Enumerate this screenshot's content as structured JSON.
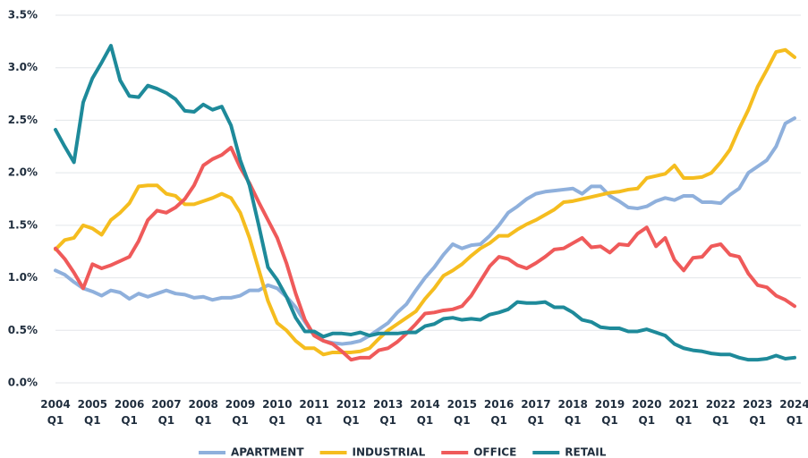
{
  "chart_data": {
    "type": "line",
    "categories": [
      "2004 Q1",
      null,
      null,
      null,
      "2005 Q1",
      null,
      null,
      null,
      "2006 Q1",
      null,
      null,
      null,
      "2007 Q1",
      null,
      null,
      null,
      "2008 Q1",
      null,
      null,
      null,
      "2009 Q1",
      null,
      null,
      null,
      "2010 Q1",
      null,
      null,
      null,
      "2011 Q1",
      null,
      null,
      null,
      "2012 Q1",
      null,
      null,
      null,
      "2013 Q1",
      null,
      null,
      null,
      "2014 Q1",
      null,
      null,
      null,
      "2015 Q1",
      null,
      null,
      null,
      "2016 Q1",
      null,
      null,
      null,
      "2017 Q1",
      null,
      null,
      null,
      "2018 Q1",
      null,
      null,
      null,
      "2019 Q1",
      null,
      null,
      null,
      "2020 Q1",
      null,
      null,
      null,
      "2021 Q1",
      null,
      null,
      null,
      "2022 Q1",
      null,
      null,
      null,
      "2023 Q1",
      null,
      null,
      null,
      "2024 Q1"
    ],
    "series": [
      {
        "name": "APARTMENT",
        "color": "#8fb0dc",
        "values": [
          1.07,
          1.03,
          0.96,
          0.9,
          0.87,
          0.83,
          0.88,
          0.86,
          0.8,
          0.85,
          0.82,
          0.85,
          0.88,
          0.85,
          0.84,
          0.81,
          0.82,
          0.79,
          0.81,
          0.81,
          0.83,
          0.88,
          0.88,
          0.93,
          0.9,
          0.82,
          0.72,
          0.58,
          0.45,
          0.4,
          0.38,
          0.37,
          0.38,
          0.4,
          0.45,
          0.51,
          0.57,
          0.67,
          0.75,
          0.88,
          1.0,
          1.1,
          1.22,
          1.32,
          1.28,
          1.31,
          1.32,
          1.4,
          1.5,
          1.62,
          1.68,
          1.75,
          1.8,
          1.82,
          1.83,
          1.84,
          1.85,
          1.8,
          1.87,
          1.87,
          1.78,
          1.73,
          1.67,
          1.66,
          1.68,
          1.73,
          1.76,
          1.74,
          1.78,
          1.78,
          1.72,
          1.72,
          1.71,
          1.79,
          1.85,
          2.0,
          2.06,
          2.12,
          2.25,
          2.47,
          2.52
        ]
      },
      {
        "name": "INDUSTRIAL",
        "color": "#f5bd1f",
        "values": [
          1.27,
          1.36,
          1.38,
          1.5,
          1.47,
          1.41,
          1.55,
          1.62,
          1.71,
          1.87,
          1.88,
          1.88,
          1.8,
          1.78,
          1.7,
          1.7,
          1.73,
          1.76,
          1.8,
          1.76,
          1.62,
          1.38,
          1.08,
          0.78,
          0.57,
          0.5,
          0.4,
          0.33,
          0.33,
          0.27,
          0.29,
          0.29,
          0.29,
          0.3,
          0.33,
          0.42,
          0.5,
          0.56,
          0.62,
          0.68,
          0.8,
          0.9,
          1.02,
          1.07,
          1.13,
          1.21,
          1.28,
          1.33,
          1.4,
          1.4,
          1.46,
          1.51,
          1.55,
          1.6,
          1.65,
          1.72,
          1.73,
          1.75,
          1.77,
          1.79,
          1.81,
          1.82,
          1.84,
          1.85,
          1.95,
          1.97,
          1.99,
          2.07,
          1.95,
          1.95,
          1.96,
          2.0,
          2.1,
          2.22,
          2.42,
          2.6,
          2.82,
          2.98,
          3.15,
          3.17,
          3.1
        ]
      },
      {
        "name": "OFFICE",
        "color": "#ef5a5a",
        "values": [
          1.28,
          1.18,
          1.05,
          0.9,
          1.13,
          1.09,
          1.12,
          1.16,
          1.2,
          1.35,
          1.55,
          1.64,
          1.62,
          1.67,
          1.75,
          1.88,
          2.07,
          2.13,
          2.17,
          2.24,
          2.05,
          1.9,
          1.72,
          1.55,
          1.38,
          1.14,
          0.85,
          0.6,
          0.45,
          0.4,
          0.37,
          0.3,
          0.22,
          0.24,
          0.24,
          0.31,
          0.33,
          0.39,
          0.47,
          0.56,
          0.66,
          0.67,
          0.69,
          0.7,
          0.73,
          0.83,
          0.97,
          1.11,
          1.2,
          1.18,
          1.12,
          1.09,
          1.14,
          1.2,
          1.27,
          1.28,
          1.33,
          1.38,
          1.29,
          1.3,
          1.24,
          1.32,
          1.31,
          1.42,
          1.48,
          1.3,
          1.38,
          1.17,
          1.07,
          1.19,
          1.2,
          1.3,
          1.32,
          1.22,
          1.2,
          1.04,
          0.93,
          0.91,
          0.83,
          0.79,
          0.73
        ]
      },
      {
        "name": "RETAIL",
        "color": "#1e8a9a",
        "values": [
          2.41,
          2.25,
          2.1,
          2.67,
          2.9,
          3.05,
          3.21,
          2.88,
          2.73,
          2.72,
          2.83,
          2.8,
          2.76,
          2.7,
          2.59,
          2.58,
          2.65,
          2.6,
          2.63,
          2.45,
          2.12,
          1.88,
          1.5,
          1.1,
          0.98,
          0.82,
          0.62,
          0.49,
          0.49,
          0.44,
          0.47,
          0.47,
          0.46,
          0.48,
          0.45,
          0.47,
          0.47,
          0.47,
          0.48,
          0.48,
          0.54,
          0.56,
          0.61,
          0.62,
          0.6,
          0.61,
          0.6,
          0.65,
          0.67,
          0.7,
          0.77,
          0.76,
          0.76,
          0.77,
          0.72,
          0.72,
          0.67,
          0.6,
          0.58,
          0.53,
          0.52,
          0.52,
          0.49,
          0.49,
          0.51,
          0.48,
          0.45,
          0.37,
          0.33,
          0.31,
          0.3,
          0.28,
          0.27,
          0.27,
          0.24,
          0.22,
          0.22,
          0.23,
          0.26,
          0.23,
          0.24
        ]
      }
    ],
    "ylim": [
      0,
      3.5
    ],
    "yticks": [
      {
        "value": 0,
        "label": "0.0%"
      },
      {
        "value": 0.5,
        "label": "0.5%"
      },
      {
        "value": 1,
        "label": "1.0%"
      },
      {
        "value": 1.5,
        "label": "1.5%"
      },
      {
        "value": 2,
        "label": "2.0%"
      },
      {
        "value": 2.5,
        "label": "2.5%"
      },
      {
        "value": 3,
        "label": "3.0%"
      },
      {
        "value": 3.5,
        "label": "3.5%"
      }
    ],
    "grid": true,
    "legend": "bottom"
  }
}
